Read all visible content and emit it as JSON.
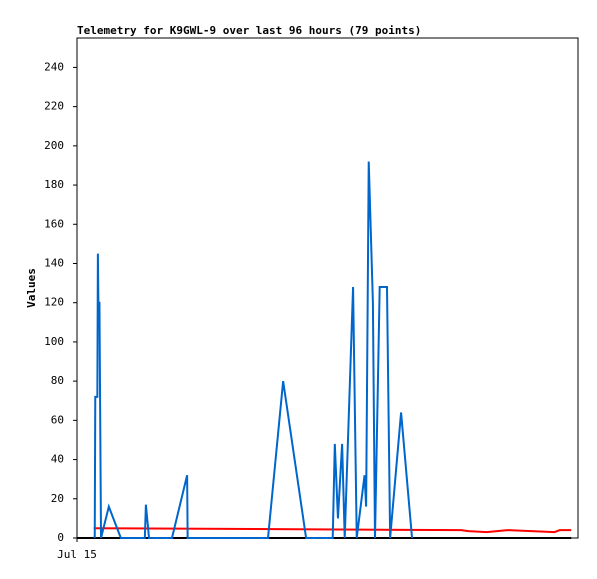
{
  "chart_data": {
    "type": "line",
    "title": "Telemetry for K9GWL-9 over last 96 hours (79 points)",
    "y_label": "Values",
    "xlim": [
      0,
      96
    ],
    "xticks": [
      {
        "value": 0,
        "label": "Jul 15"
      }
    ],
    "ylim": [
      0,
      255
    ],
    "yticks": [
      0,
      20,
      40,
      60,
      80,
      100,
      120,
      140,
      160,
      180,
      200,
      220,
      240
    ],
    "series": [
      {
        "color": "#000000",
        "x": [
          0,
          94.7
        ],
        "values": [
          0,
          0
        ]
      },
      {
        "color": "#ff0000",
        "x": [
          3.2,
          73.6,
          75,
          78.5,
          82.5,
          91.5,
          92.5,
          94.7
        ],
        "values": [
          5,
          4,
          3.5,
          3,
          4,
          3,
          4,
          4
        ]
      },
      {
        "color": "#0066cc",
        "x": [
          3.4,
          3.5,
          3.9,
          4.0,
          4.1,
          4.3,
          4.6,
          6.1,
          8.4,
          13.0,
          13.2,
          13.8,
          18.2,
          21.1,
          21.2,
          36.6,
          39.5,
          43.9,
          49.0,
          49.4,
          50.0,
          50.8,
          51.3,
          52.9,
          53.6,
          55.1,
          55.4,
          55.9,
          56.7,
          57.1,
          58.0,
          59.4,
          60.0,
          62.1,
          64.2
        ],
        "values": [
          0,
          72,
          72,
          145,
          120,
          120,
          0,
          16,
          0,
          0,
          17,
          0,
          0,
          32,
          0,
          0,
          80,
          0,
          0,
          48,
          10,
          48,
          0,
          128,
          0,
          32,
          16,
          192,
          120,
          0,
          128,
          128,
          0,
          64,
          0
        ]
      }
    ]
  }
}
